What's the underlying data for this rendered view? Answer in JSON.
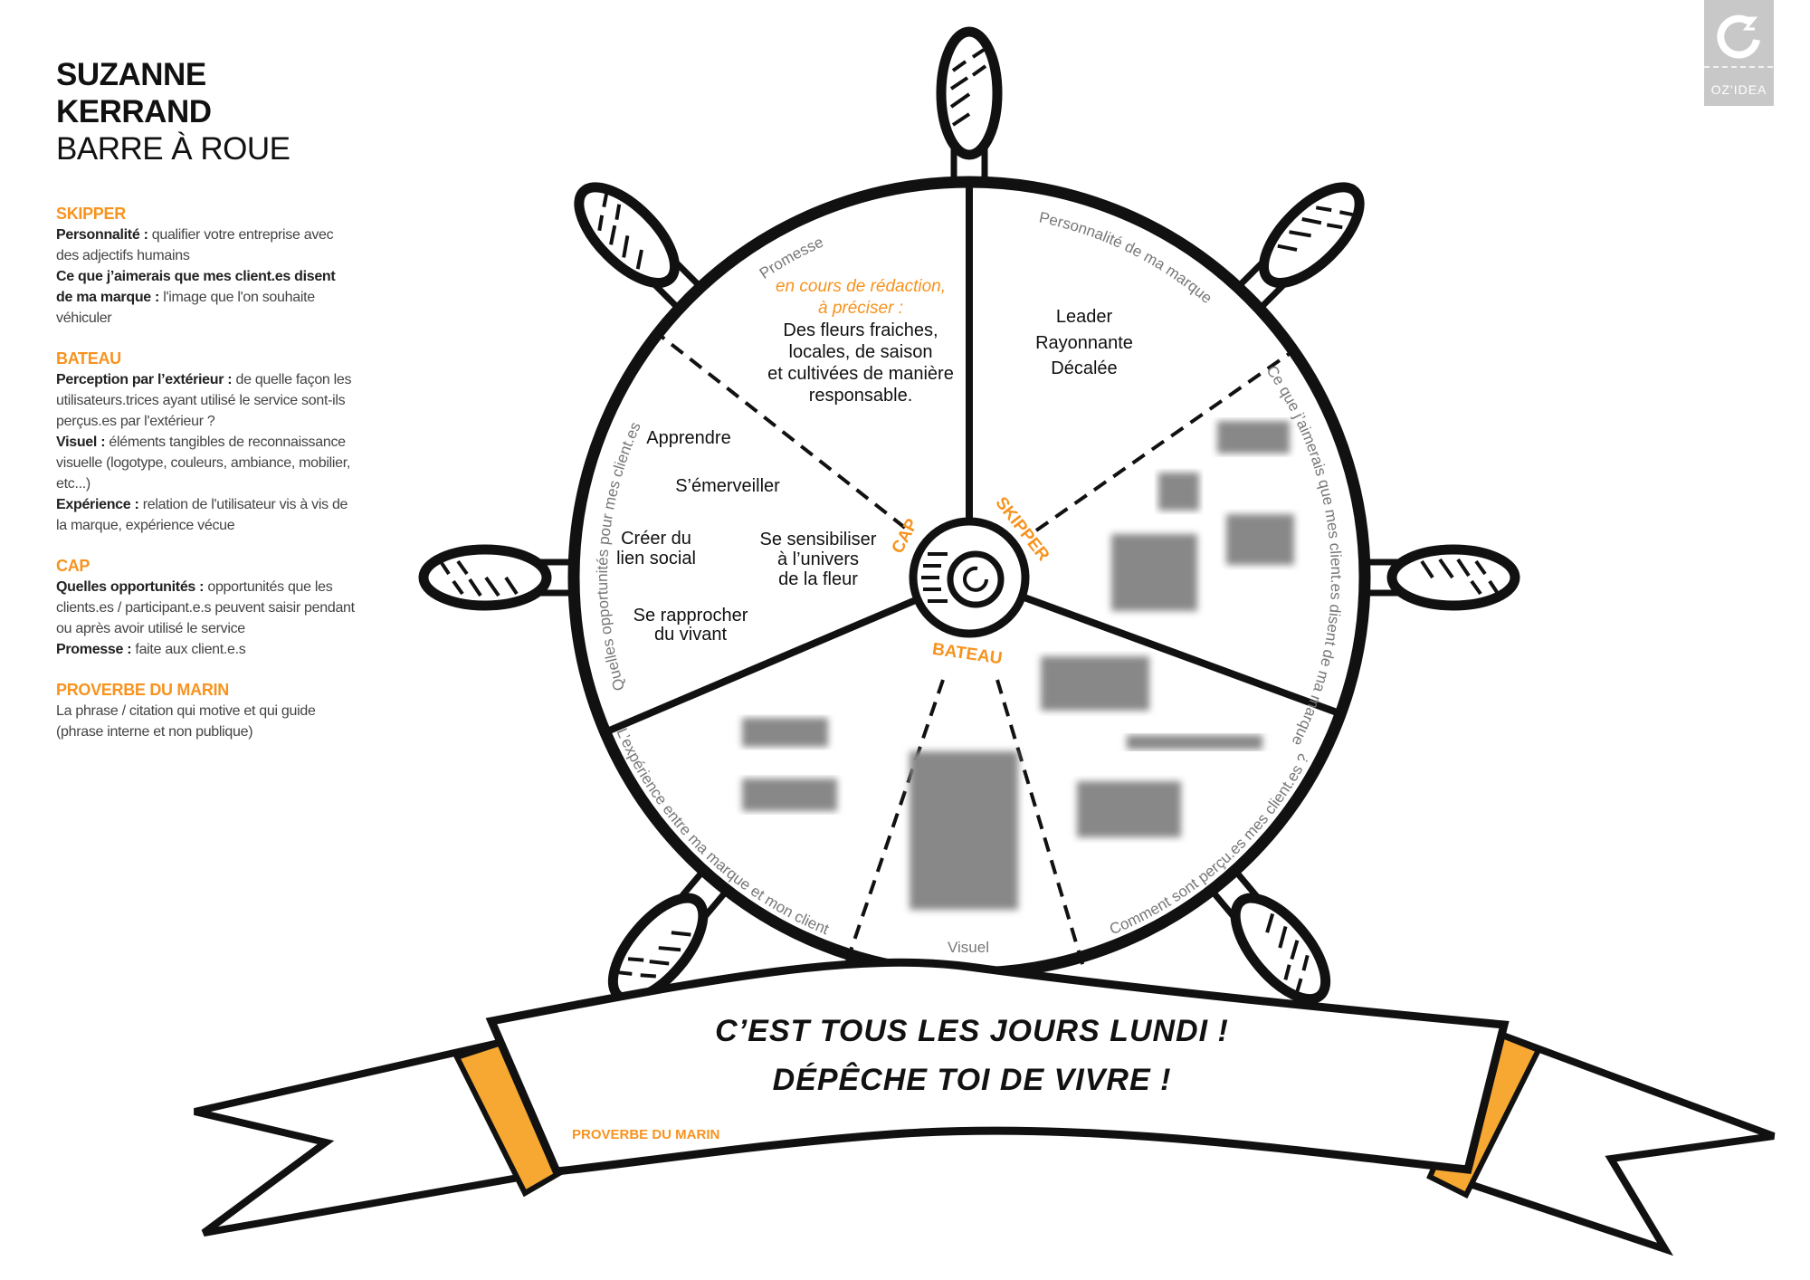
{
  "header": {
    "name_line1": "SUZANNE",
    "name_line2": "KERRAND",
    "subtitle": "BARRE À ROUE"
  },
  "legend": {
    "skipper": {
      "heading": "SKIPPER",
      "l1_bold": "Personnalité :",
      "l1_text": " qualifier votre entreprise avec des adjectifs humains",
      "l2_bold": "Ce que j’aimerais que mes client.es disent de ma marque :",
      "l2_text": "  l'image que l'on souhaite véhiculer"
    },
    "bateau": {
      "heading": "BATEAU",
      "l1_bold": "Perception par l’extérieur :",
      "l1_text": " de quelle façon les utilisateurs.trices ayant utilisé le service sont-ils perçus.es par l'extérieur ?",
      "l2_bold": "Visuel :",
      "l2_text": " éléments tangibles de reconnaissance visuelle (logotype, couleurs, ambiance, mobilier, etc...)",
      "l3_bold": "Expérience :",
      "l3_text": " relation de l'utilisateur vis à vis de la marque, expérience vécue"
    },
    "cap": {
      "heading": "CAP",
      "l1_bold": "Quelles opportunités :",
      "l1_text": "  opportunités que les clients.es / participant.e.s peuvent saisir pendant ou après avoir utilisé le service",
      "l2_bold": "Promesse :",
      "l2_text": " faite aux client.e.s"
    },
    "proverbe": {
      "heading": "PROVERBE DU MARIN",
      "text": "La phrase / citation qui motive et qui guide (phrase interne et non publique)"
    }
  },
  "logo": {
    "text": "OZ'IDEA"
  },
  "wheel": {
    "hub_labels": {
      "cap": "CAP",
      "skipper": "SKIPPER",
      "bateau": "BATEAU"
    },
    "arc_labels": {
      "promesse": "Promesse",
      "personnalite": "Personnalité de ma marque",
      "aimerais": "Ce que j’aimerais que mes client.es disent de ma marque",
      "percus": "Comment sont perçu.es mes client.es ?",
      "visuel": "Visuel",
      "experience": "L’expérience entre ma marque et mon client",
      "opportunites": "Quelles opportunités pour mes client.es"
    },
    "promesse": {
      "note_line1": "en cours de rédaction,",
      "note_line2": "à préciser :",
      "lines": [
        "Des fleurs fraiches,",
        "locales, de saison",
        "et cultivées de manière",
        "responsable."
      ]
    },
    "personnalite": [
      "Leader",
      "Rayonnante",
      "Décalée"
    ],
    "opportunites": {
      "apprendre": "Apprendre",
      "emerveiller": "S’émerveiller",
      "creer": [
        "Créer du",
        "lien social"
      ],
      "sensibiliser": [
        "Se sensibiliser",
        "à l’univers",
        "de la fleur"
      ],
      "rapprocher": [
        "Se rapprocher",
        "du vivant"
      ]
    }
  },
  "banner": {
    "line1": "C’EST TOUS LES JOURS LUNDI !",
    "line2": "DÉPÊCHE TOI DE VIVRE !",
    "label": "PROVERBE DU MARIN"
  },
  "colors": {
    "accent": "#f7931e",
    "ink": "#111111",
    "muted": "#777777",
    "logo_bg": "#c8c8c8"
  }
}
